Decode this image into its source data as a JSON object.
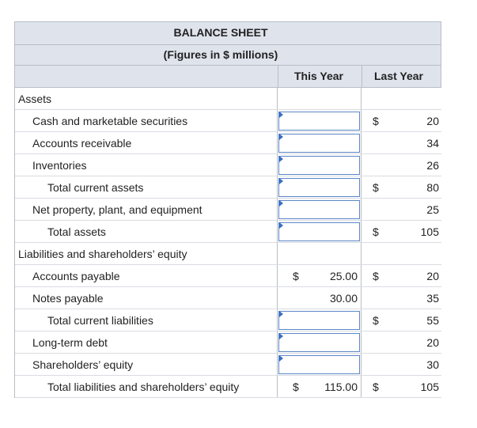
{
  "title": "BALANCE SHEET",
  "subtitle": "(Figures in $ millions)",
  "columns": {
    "this_year": "This Year",
    "last_year": "Last Year"
  },
  "currency_symbol": "$",
  "rows": [
    {
      "label": "Assets",
      "indent": 0,
      "this_input": false,
      "this_dollar": "",
      "this_value": "",
      "last_dollar": "",
      "last_value": ""
    },
    {
      "label": "Cash and marketable securities",
      "indent": 1,
      "this_input": true,
      "this_dollar": "",
      "this_value": "",
      "last_dollar": "$",
      "last_value": "20"
    },
    {
      "label": "Accounts receivable",
      "indent": 1,
      "this_input": true,
      "this_dollar": "",
      "this_value": "",
      "last_dollar": "",
      "last_value": "34"
    },
    {
      "label": "Inventories",
      "indent": 1,
      "this_input": true,
      "this_dollar": "",
      "this_value": "",
      "last_dollar": "",
      "last_value": "26"
    },
    {
      "label": "Total current assets",
      "indent": 2,
      "this_input": true,
      "this_dollar": "",
      "this_value": "",
      "last_dollar": "$",
      "last_value": "80"
    },
    {
      "label": "Net property, plant, and equipment",
      "indent": 1,
      "this_input": true,
      "this_dollar": "",
      "this_value": "",
      "last_dollar": "",
      "last_value": "25"
    },
    {
      "label": "Total assets",
      "indent": 2,
      "this_input": true,
      "this_dollar": "",
      "this_value": "",
      "last_dollar": "$",
      "last_value": "105"
    },
    {
      "label": "Liabilities and shareholders’ equity",
      "indent": 0,
      "this_input": false,
      "this_dollar": "",
      "this_value": "",
      "last_dollar": "",
      "last_value": ""
    },
    {
      "label": "Accounts payable",
      "indent": 1,
      "this_input": false,
      "this_dollar": "$",
      "this_value": "25.00",
      "last_dollar": "$",
      "last_value": "20"
    },
    {
      "label": "Notes payable",
      "indent": 1,
      "this_input": false,
      "this_dollar": "",
      "this_value": "30.00",
      "last_dollar": "",
      "last_value": "35"
    },
    {
      "label": "Total current liabilities",
      "indent": 2,
      "this_input": true,
      "this_dollar": "",
      "this_value": "",
      "last_dollar": "$",
      "last_value": "55"
    },
    {
      "label": "Long-term debt",
      "indent": 1,
      "this_input": true,
      "this_dollar": "",
      "this_value": "",
      "last_dollar": "",
      "last_value": "20"
    },
    {
      "label": "Shareholders’ equity",
      "indent": 1,
      "this_input": true,
      "this_dollar": "",
      "this_value": "",
      "last_dollar": "",
      "last_value": "30"
    },
    {
      "label": "Total liabilities and shareholders’ equity",
      "indent": 2,
      "this_input": false,
      "this_dollar": "$",
      "this_value": "115.00",
      "last_dollar": "$",
      "last_value": "105"
    }
  ]
}
